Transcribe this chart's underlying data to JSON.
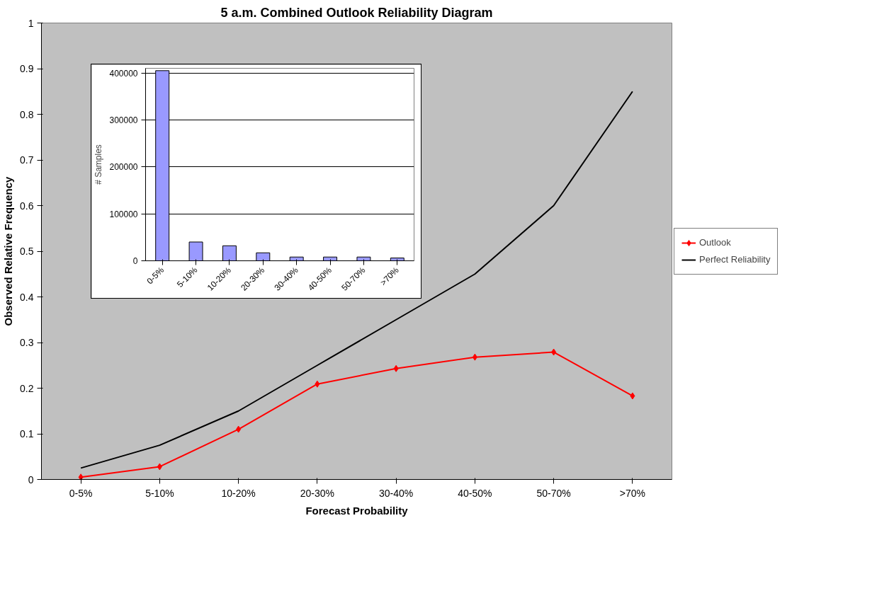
{
  "chart_data": [
    {
      "type": "line",
      "title": "5 a.m. Combined Outlook Reliability Diagram",
      "xlabel": "Forecast Probability",
      "ylabel": "Observed Relative Frequency",
      "categories": [
        "0-5%",
        "5-10%",
        "10-20%",
        "20-30%",
        "30-40%",
        "40-50%",
        "50-70%",
        ">70%"
      ],
      "series": [
        {
          "name": "Outlook",
          "color": "#ff0000",
          "marker": "diamond",
          "values": [
            0.005,
            0.028,
            0.11,
            0.209,
            0.243,
            0.268,
            0.279,
            0.183
          ]
        },
        {
          "name": "Perfect Reliability",
          "color": "#000000",
          "marker": "none",
          "values": [
            0.025,
            0.075,
            0.15,
            0.25,
            0.35,
            0.45,
            0.6,
            0.85
          ]
        }
      ],
      "ylim": [
        0,
        1
      ],
      "yticks": [
        0,
        0.1,
        0.2,
        0.3,
        0.4,
        0.5,
        0.6,
        0.7,
        0.8,
        0.9,
        1
      ],
      "legend": "right",
      "grid": false
    },
    {
      "type": "bar",
      "ylabel": "# Samples",
      "categories": [
        "0-5%",
        "5-10%",
        "10-20%",
        "20-30%",
        "30-40%",
        "40-50%",
        "50-70%",
        ">70%"
      ],
      "values": [
        405000,
        40000,
        32000,
        17000,
        8000,
        8000,
        8000,
        6000
      ],
      "color": "#9999ff",
      "ylim": [
        0,
        410000
      ],
      "yticks": [
        0,
        100000,
        200000,
        300000,
        400000
      ],
      "grid": "y"
    }
  ]
}
